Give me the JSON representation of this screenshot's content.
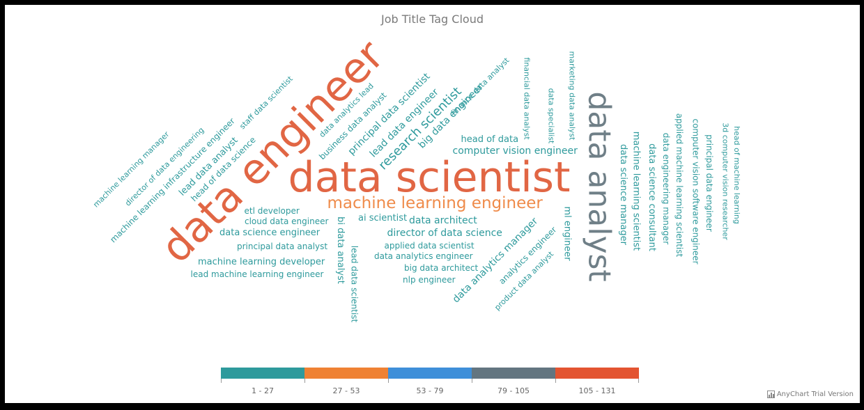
{
  "chart_data": {
    "type": "tag-cloud",
    "title": "Job Title Tag Cloud",
    "legend": {
      "placement": "bottom-center",
      "ranges": [
        {
          "label": "1 - 27",
          "color": "#2e9a9c"
        },
        {
          "label": "27 - 53",
          "color": "#ef8133"
        },
        {
          "label": "53 - 79",
          "color": "#3e8fd9"
        },
        {
          "label": "79 - 105",
          "color": "#637580"
        },
        {
          "label": "105 - 131",
          "color": "#e35431"
        }
      ]
    },
    "words": [
      {
        "text": "data scientist",
        "value": 131,
        "color": "#e16644"
      },
      {
        "text": "data engineer",
        "value": 120,
        "color": "#e16644"
      },
      {
        "text": "data analyst",
        "value": 90,
        "color": "#6f7f87"
      },
      {
        "text": "machine learning engineer",
        "value": 35,
        "color": "#ef8b4a"
      },
      {
        "text": "research scientist",
        "value": 15,
        "color": "#2e9a9c"
      },
      {
        "text": "big data engineer",
        "value": 11,
        "color": "#2e9a9c"
      },
      {
        "text": "lead data engineer",
        "value": 11,
        "color": "#2e9a9c"
      },
      {
        "text": "principal data scientist",
        "value": 10,
        "color": "#2e9a9c"
      },
      {
        "text": "computer vision engineer",
        "value": 10,
        "color": "#2e9a9c"
      },
      {
        "text": "data architect",
        "value": 10,
        "color": "#2e9a9c"
      },
      {
        "text": "director of data science",
        "value": 10,
        "color": "#2e9a9c"
      },
      {
        "text": "data analytics manager",
        "value": 10,
        "color": "#2e9a9c"
      },
      {
        "text": "machine learning scientist",
        "value": 9,
        "color": "#2e9a9c"
      },
      {
        "text": "data science manager",
        "value": 9,
        "color": "#2e9a9c"
      },
      {
        "text": "data science consultant",
        "value": 9,
        "color": "#2e9a9c"
      },
      {
        "text": "ml engineer",
        "value": 9,
        "color": "#2e9a9c"
      },
      {
        "text": "bi data analyst",
        "value": 9,
        "color": "#2e9a9c"
      },
      {
        "text": "lead data analyst",
        "value": 9,
        "color": "#2e9a9c"
      },
      {
        "text": "ai scientist",
        "value": 9,
        "color": "#2e9a9c"
      },
      {
        "text": "head of data",
        "value": 8,
        "color": "#2e9a9c"
      },
      {
        "text": "data science engineer",
        "value": 8,
        "color": "#2e9a9c"
      },
      {
        "text": "machine learning developer",
        "value": 8,
        "color": "#2e9a9c"
      },
      {
        "text": "data analytics engineer",
        "value": 8,
        "color": "#2e9a9c"
      },
      {
        "text": "applied data scientist",
        "value": 8,
        "color": "#2e9a9c"
      },
      {
        "text": "machine learning infrastructure engineer",
        "value": 8,
        "color": "#2e9a9c"
      },
      {
        "text": "head of data science",
        "value": 8,
        "color": "#2e9a9c"
      },
      {
        "text": "data engineering manager",
        "value": 7,
        "color": "#2e9a9c"
      },
      {
        "text": "applied machine learning scientist",
        "value": 7,
        "color": "#2e9a9c"
      },
      {
        "text": "computer vision software engineer",
        "value": 7,
        "color": "#2e9a9c"
      },
      {
        "text": "principal data engineer",
        "value": 7,
        "color": "#2e9a9c"
      },
      {
        "text": "business data analyst",
        "value": 7,
        "color": "#2e9a9c"
      },
      {
        "text": "cloud data engineer",
        "value": 7,
        "color": "#2e9a9c"
      },
      {
        "text": "etl developer",
        "value": 7,
        "color": "#2e9a9c"
      },
      {
        "text": "principal data analyst",
        "value": 7,
        "color": "#2e9a9c"
      },
      {
        "text": "lead machine learning engineer",
        "value": 7,
        "color": "#2e9a9c"
      },
      {
        "text": "big data architect",
        "value": 7,
        "color": "#2e9a9c"
      },
      {
        "text": "nlp engineer",
        "value": 7,
        "color": "#2e9a9c"
      },
      {
        "text": "analytics engineer",
        "value": 7,
        "color": "#2e9a9c"
      },
      {
        "text": "lead data scientist",
        "value": 7,
        "color": "#2e9a9c"
      },
      {
        "text": "head of machine learning",
        "value": 6,
        "color": "#2e9a9c"
      },
      {
        "text": "3d computer vision researcher",
        "value": 6,
        "color": "#2e9a9c"
      },
      {
        "text": "financial data analyst",
        "value": 6,
        "color": "#2e9a9c"
      },
      {
        "text": "data specialist",
        "value": 6,
        "color": "#2e9a9c"
      },
      {
        "text": "marketing data analyst",
        "value": 6,
        "color": "#2e9a9c"
      },
      {
        "text": "finance data analyst",
        "value": 6,
        "color": "#2e9a9c"
      },
      {
        "text": "data analytics lead",
        "value": 6,
        "color": "#2e9a9c"
      },
      {
        "text": "staff data scientist",
        "value": 6,
        "color": "#2e9a9c"
      },
      {
        "text": "director of data engineering",
        "value": 6,
        "color": "#2e9a9c"
      },
      {
        "text": "machine learning manager",
        "value": 6,
        "color": "#2e9a9c"
      },
      {
        "text": "product data analyst",
        "value": 6,
        "color": "#2e9a9c"
      }
    ]
  },
  "footer": {
    "trial_text": "AnyChart Trial Version"
  }
}
